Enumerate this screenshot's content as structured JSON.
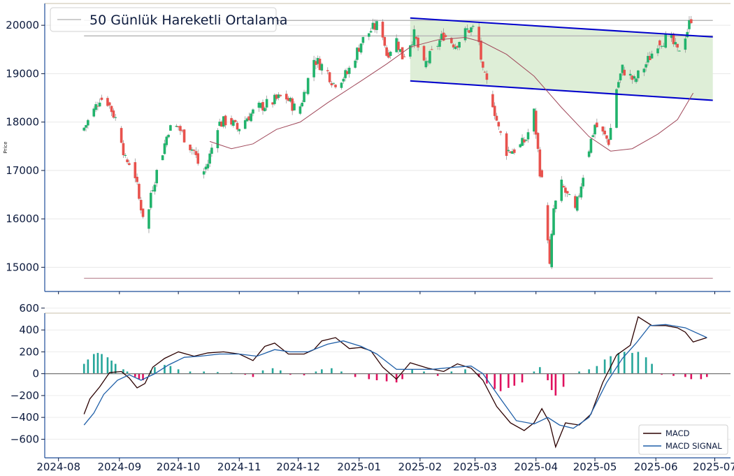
{
  "chart_data": [
    {
      "type": "candlestick",
      "y_tick_labels": [
        "15000",
        "16000",
        "17000",
        "18000",
        "19000",
        "20000"
      ],
      "y_ticks": [
        15000,
        16000,
        17000,
        18000,
        19000,
        20000
      ],
      "ylim": [
        14500,
        20450
      ],
      "ylabel": "Price",
      "legend": {
        "entries": [
          "50 Günlük Hareketli Ortalama"
        ],
        "placement": "top-left"
      },
      "grid": true,
      "horizontal_lines": [
        {
          "y": 20100,
          "color": "#b8b8b8"
        },
        {
          "y": 19780,
          "color": "#b8b8b8"
        },
        {
          "y": 14770,
          "color": "#c9a0aa"
        }
      ],
      "channel": {
        "upper": {
          "from": [
            "2025-01-27",
            20150
          ],
          "to": [
            "2025-06-30",
            19760
          ]
        },
        "lower": {
          "from": [
            "2025-01-27",
            18850
          ],
          "to": [
            "2025-06-30",
            18450
          ]
        },
        "line_color": "#0000cc",
        "fill_color": "#dcedd5"
      },
      "candles_close": [
        [
          "2024-08-14",
          17820
        ],
        [
          "2024-08-19",
          18150
        ],
        [
          "2024-08-23",
          18500
        ],
        [
          "2024-08-27",
          18420
        ],
        [
          "2024-09-02",
          17900
        ],
        [
          "2024-09-05",
          17200
        ],
        [
          "2024-09-09",
          17150
        ],
        [
          "2024-09-12",
          16400
        ],
        [
          "2024-09-16",
          15800
        ],
        [
          "2024-09-18",
          16550
        ],
        [
          "2024-09-23",
          17250
        ],
        [
          "2024-09-27",
          17850
        ],
        [
          "2024-10-02",
          17900
        ],
        [
          "2024-10-07",
          17550
        ],
        [
          "2024-10-10",
          17400
        ],
        [
          "2024-10-14",
          16900
        ],
        [
          "2024-10-17",
          17150
        ],
        [
          "2024-10-22",
          17950
        ],
        [
          "2024-10-28",
          18050
        ],
        [
          "2024-11-01",
          17850
        ],
        [
          "2024-11-06",
          18100
        ],
        [
          "2024-11-12",
          18300
        ],
        [
          "2024-11-18",
          18400
        ],
        [
          "2024-11-25",
          18550
        ],
        [
          "2024-12-02",
          18200
        ],
        [
          "2024-12-05",
          18600
        ],
        [
          "2024-12-10",
          19300
        ],
        [
          "2024-12-16",
          19100
        ],
        [
          "2024-12-20",
          18800
        ],
        [
          "2024-12-27",
          19000
        ],
        [
          "2025-01-03",
          19650
        ],
        [
          "2025-01-08",
          19900
        ],
        [
          "2025-01-13",
          20050
        ],
        [
          "2025-01-16",
          19400
        ],
        [
          "2025-01-21",
          19700
        ],
        [
          "2025-01-24",
          19350
        ],
        [
          "2025-01-30",
          19800
        ],
        [
          "2025-02-04",
          19150
        ],
        [
          "2025-02-10",
          19550
        ],
        [
          "2025-02-14",
          19800
        ],
        [
          "2025-02-20",
          19600
        ],
        [
          "2025-02-26",
          19900
        ],
        [
          "2025-03-03",
          19950
        ],
        [
          "2025-03-06",
          19000
        ],
        [
          "2025-03-10",
          18600
        ],
        [
          "2025-03-14",
          17850
        ],
        [
          "2025-03-18",
          17400
        ],
        [
          "2025-03-24",
          17450
        ],
        [
          "2025-03-28",
          17650
        ],
        [
          "2025-04-01",
          18200
        ],
        [
          "2025-04-04",
          17000
        ],
        [
          "2025-04-07",
          16300
        ],
        [
          "2025-04-09",
          15000
        ],
        [
          "2025-04-11",
          16200
        ],
        [
          "2025-04-15",
          16700
        ],
        [
          "2025-04-22",
          16150
        ],
        [
          "2025-04-28",
          17300
        ],
        [
          "2025-05-02",
          17950
        ],
        [
          "2025-05-09",
          17600
        ],
        [
          "2025-05-13",
          18700
        ],
        [
          "2025-05-16",
          19100
        ],
        [
          "2025-05-22",
          18850
        ],
        [
          "2025-05-28",
          19200
        ],
        [
          "2025-06-03",
          19650
        ],
        [
          "2025-06-09",
          19750
        ],
        [
          "2025-06-13",
          19450
        ],
        [
          "2025-06-18",
          19900
        ],
        [
          "2025-06-20",
          20150
        ]
      ],
      "moving_average_50": [
        [
          "2024-10-17",
          17600
        ],
        [
          "2024-10-28",
          17450
        ],
        [
          "2024-11-08",
          17550
        ],
        [
          "2024-11-20",
          17850
        ],
        [
          "2024-12-02",
          18000
        ],
        [
          "2024-12-16",
          18400
        ],
        [
          "2025-01-02",
          18850
        ],
        [
          "2025-01-15",
          19200
        ],
        [
          "2025-01-27",
          19550
        ],
        [
          "2025-02-10",
          19700
        ],
        [
          "2025-02-24",
          19750
        ],
        [
          "2025-03-05",
          19650
        ],
        [
          "2025-03-17",
          19400
        ],
        [
          "2025-03-31",
          18950
        ],
        [
          "2025-04-14",
          18300
        ],
        [
          "2025-04-28",
          17700
        ],
        [
          "2025-05-09",
          17400
        ],
        [
          "2025-05-20",
          17450
        ],
        [
          "2025-06-02",
          17750
        ],
        [
          "2025-06-12",
          18050
        ],
        [
          "2025-06-20",
          18600
        ]
      ]
    },
    {
      "type": "line",
      "y_tick_labels": [
        "−600",
        "−400",
        "−200",
        "0",
        "200",
        "400",
        "600"
      ],
      "y_ticks": [
        -600,
        -400,
        -200,
        0,
        200,
        400,
        600
      ],
      "ylim": [
        -770,
        650
      ],
      "x_tick_labels": [
        "2024-08",
        "2024-09",
        "2024-10",
        "2024-11",
        "2024-12",
        "2025-01",
        "2025-02",
        "2025-03",
        "2025-04",
        "2025-05",
        "2025-06",
        "2025-07"
      ],
      "xlim": [
        "2024-07-25",
        "2025-07-09"
      ],
      "legend": {
        "entries": [
          "MACD",
          "MACD SIGNAL"
        ],
        "placement": "lower-right"
      },
      "series": [
        {
          "name": "MACD",
          "color": "#2b0000",
          "points": [
            [
              "2024-08-14",
              -370
            ],
            [
              "2024-08-17",
              -230
            ],
            [
              "2024-08-22",
              -120
            ],
            [
              "2024-08-27",
              10
            ],
            [
              "2024-09-02",
              20
            ],
            [
              "2024-09-06",
              -40
            ],
            [
              "2024-09-10",
              -130
            ],
            [
              "2024-09-14",
              -90
            ],
            [
              "2024-09-18",
              60
            ],
            [
              "2024-09-24",
              140
            ],
            [
              "2024-10-01",
              200
            ],
            [
              "2024-10-09",
              160
            ],
            [
              "2024-10-16",
              190
            ],
            [
              "2024-10-24",
              200
            ],
            [
              "2024-11-01",
              180
            ],
            [
              "2024-11-08",
              120
            ],
            [
              "2024-11-14",
              250
            ],
            [
              "2024-11-19",
              280
            ],
            [
              "2024-11-26",
              180
            ],
            [
              "2024-12-04",
              180
            ],
            [
              "2024-12-09",
              220
            ],
            [
              "2024-12-13",
              300
            ],
            [
              "2024-12-20",
              330
            ],
            [
              "2024-12-27",
              230
            ],
            [
              "2025-01-02",
              240
            ],
            [
              "2025-01-07",
              210
            ],
            [
              "2025-01-13",
              60
            ],
            [
              "2025-01-20",
              -50
            ],
            [
              "2025-01-27",
              100
            ],
            [
              "2025-02-05",
              50
            ],
            [
              "2025-02-13",
              20
            ],
            [
              "2025-02-20",
              90
            ],
            [
              "2025-02-27",
              50
            ],
            [
              "2025-03-05",
              -60
            ],
            [
              "2025-03-12",
              -300
            ],
            [
              "2025-03-19",
              -450
            ],
            [
              "2025-03-26",
              -520
            ],
            [
              "2025-03-31",
              -450
            ],
            [
              "2025-04-04",
              -320
            ],
            [
              "2025-04-08",
              -450
            ],
            [
              "2025-04-11",
              -670
            ],
            [
              "2025-04-16",
              -450
            ],
            [
              "2025-04-23",
              -470
            ],
            [
              "2025-04-29",
              -370
            ],
            [
              "2025-05-05",
              -80
            ],
            [
              "2025-05-12",
              170
            ],
            [
              "2025-05-19",
              260
            ],
            [
              "2025-05-23",
              520
            ],
            [
              "2025-05-30",
              440
            ],
            [
              "2025-06-06",
              440
            ],
            [
              "2025-06-12",
              420
            ],
            [
              "2025-06-16",
              380
            ],
            [
              "2025-06-20",
              290
            ],
            [
              "2025-06-27",
              330
            ]
          ]
        },
        {
          "name": "MACD SIGNAL",
          "color": "#1f5fa8",
          "points": [
            [
              "2024-08-14",
              -470
            ],
            [
              "2024-08-19",
              -360
            ],
            [
              "2024-08-24",
              -190
            ],
            [
              "2024-08-31",
              -60
            ],
            [
              "2024-09-06",
              -10
            ],
            [
              "2024-09-12",
              -60
            ],
            [
              "2024-09-19",
              0
            ],
            [
              "2024-09-26",
              80
            ],
            [
              "2024-10-04",
              150
            ],
            [
              "2024-10-12",
              160
            ],
            [
              "2024-10-22",
              180
            ],
            [
              "2024-11-01",
              180
            ],
            [
              "2024-11-10",
              160
            ],
            [
              "2024-11-19",
              220
            ],
            [
              "2024-11-27",
              200
            ],
            [
              "2024-12-06",
              200
            ],
            [
              "2024-12-16",
              270
            ],
            [
              "2024-12-24",
              300
            ],
            [
              "2025-01-02",
              250
            ],
            [
              "2025-01-10",
              180
            ],
            [
              "2025-01-20",
              40
            ],
            [
              "2025-01-27",
              40
            ],
            [
              "2025-02-07",
              40
            ],
            [
              "2025-02-19",
              60
            ],
            [
              "2025-02-27",
              70
            ],
            [
              "2025-03-05",
              0
            ],
            [
              "2025-03-14",
              -230
            ],
            [
              "2025-03-22",
              -430
            ],
            [
              "2025-03-31",
              -460
            ],
            [
              "2025-04-07",
              -400
            ],
            [
              "2025-04-13",
              -470
            ],
            [
              "2025-04-20",
              -500
            ],
            [
              "2025-04-28",
              -400
            ],
            [
              "2025-05-07",
              -80
            ],
            [
              "2025-05-15",
              140
            ],
            [
              "2025-05-22",
              280
            ],
            [
              "2025-05-29",
              440
            ],
            [
              "2025-06-06",
              450
            ],
            [
              "2025-06-16",
              420
            ],
            [
              "2025-06-27",
              330
            ]
          ]
        }
      ],
      "histogram": [
        [
          "2024-08-14",
          90
        ],
        [
          "2024-08-16",
          130
        ],
        [
          "2024-08-19",
          180
        ],
        [
          "2024-08-21",
          190
        ],
        [
          "2024-08-23",
          180
        ],
        [
          "2024-08-26",
          150
        ],
        [
          "2024-08-28",
          120
        ],
        [
          "2024-08-30",
          90
        ],
        [
          "2024-09-03",
          40
        ],
        [
          "2024-09-05",
          20
        ],
        [
          "2024-09-09",
          -30
        ],
        [
          "2024-09-11",
          -50
        ],
        [
          "2024-09-13",
          -60
        ],
        [
          "2024-09-17",
          30
        ],
        [
          "2024-09-19",
          60
        ],
        [
          "2024-09-24",
          80
        ],
        [
          "2024-09-27",
          70
        ],
        [
          "2024-10-01",
          40
        ],
        [
          "2024-10-07",
          20
        ],
        [
          "2024-10-14",
          20
        ],
        [
          "2024-10-21",
          15
        ],
        [
          "2024-10-28",
          10
        ],
        [
          "2024-11-04",
          -10
        ],
        [
          "2024-11-08",
          -30
        ],
        [
          "2024-11-13",
          30
        ],
        [
          "2024-11-18",
          50
        ],
        [
          "2024-11-22",
          30
        ],
        [
          "2024-11-27",
          -10
        ],
        [
          "2024-12-04",
          -15
        ],
        [
          "2024-12-10",
          20
        ],
        [
          "2024-12-13",
          40
        ],
        [
          "2024-12-18",
          50
        ],
        [
          "2024-12-23",
          20
        ],
        [
          "2024-12-30",
          -30
        ],
        [
          "2025-01-06",
          -50
        ],
        [
          "2025-01-10",
          -60
        ],
        [
          "2025-01-15",
          -70
        ],
        [
          "2025-01-20",
          -80
        ],
        [
          "2025-01-23",
          -50
        ],
        [
          "2025-01-28",
          40
        ],
        [
          "2025-02-03",
          20
        ],
        [
          "2025-02-10",
          -20
        ],
        [
          "2025-02-17",
          20
        ],
        [
          "2025-02-24",
          40
        ],
        [
          "2025-03-03",
          -30
        ],
        [
          "2025-03-07",
          -90
        ],
        [
          "2025-03-11",
          -140
        ],
        [
          "2025-03-14",
          -160
        ],
        [
          "2025-03-18",
          -130
        ],
        [
          "2025-03-21",
          -110
        ],
        [
          "2025-03-25",
          -80
        ],
        [
          "2025-03-31",
          20
        ],
        [
          "2025-04-03",
          60
        ],
        [
          "2025-04-07",
          -60
        ],
        [
          "2025-04-09",
          -150
        ],
        [
          "2025-04-11",
          -200
        ],
        [
          "2025-04-15",
          -120
        ],
        [
          "2025-04-23",
          20
        ],
        [
          "2025-04-28",
          40
        ],
        [
          "2025-05-02",
          70
        ],
        [
          "2025-05-06",
          130
        ],
        [
          "2025-05-09",
          160
        ],
        [
          "2025-05-13",
          190
        ],
        [
          "2025-05-16",
          200
        ],
        [
          "2025-05-20",
          190
        ],
        [
          "2025-05-23",
          200
        ],
        [
          "2025-05-27",
          150
        ],
        [
          "2025-05-30",
          90
        ],
        [
          "2025-06-04",
          -10
        ],
        [
          "2025-06-10",
          -20
        ],
        [
          "2025-06-16",
          -30
        ],
        [
          "2025-06-19",
          -50
        ],
        [
          "2025-06-24",
          -50
        ],
        [
          "2025-06-27",
          -30
        ]
      ],
      "histogram_colors": {
        "positive": "#26a69a",
        "negative": "#e0115f"
      }
    }
  ],
  "style": {
    "up_color": "#21b36c",
    "down_color": "#e8524d",
    "axis_color": "#1f4e99",
    "tick_color": "#0d1b3e",
    "ma_color": "#a0485a",
    "top_border_color": "#c8bfa8"
  }
}
